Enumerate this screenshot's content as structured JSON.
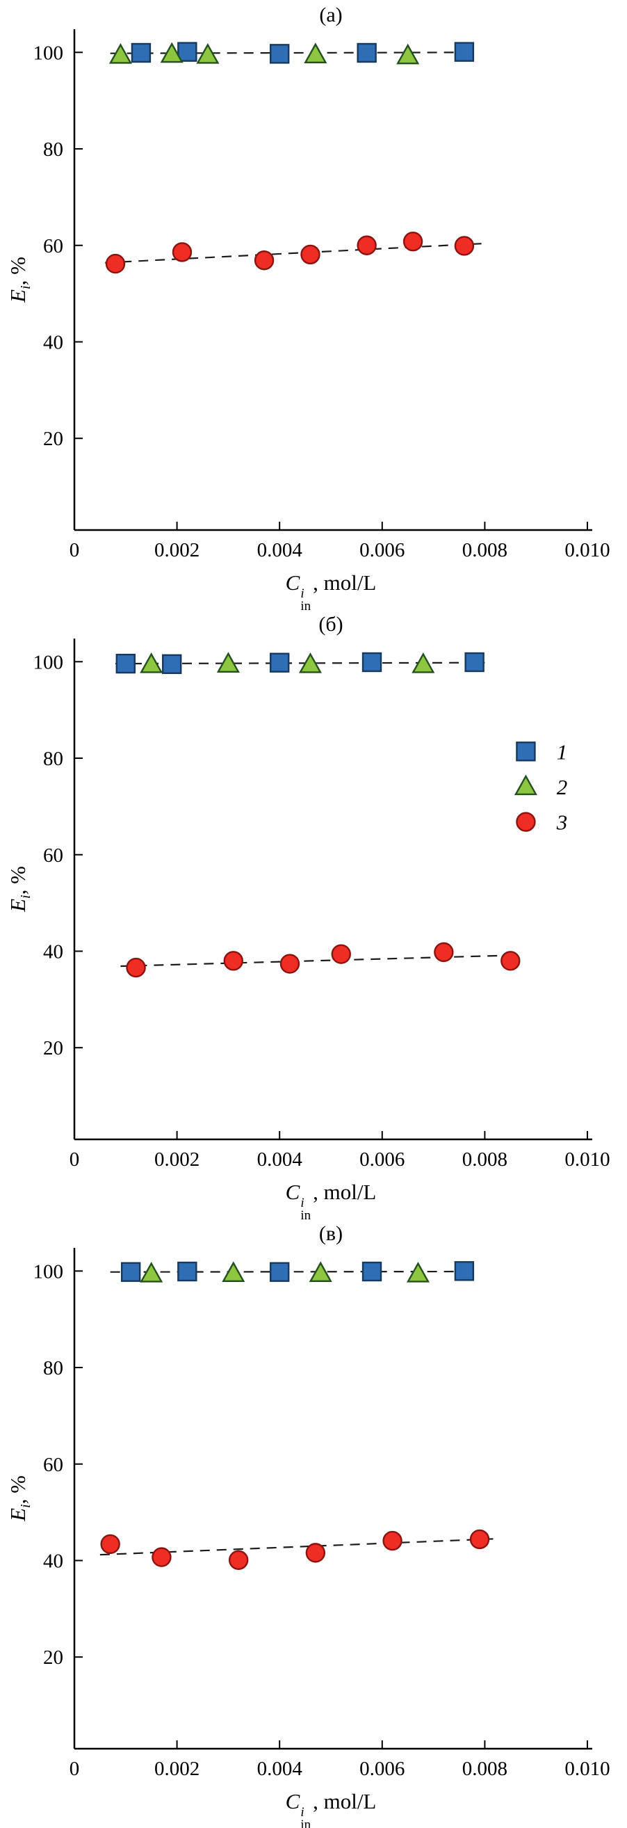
{
  "figure": {
    "background": "#ffffff"
  },
  "colors": {
    "axis": "#000000",
    "dash_line": "#1c1c1c",
    "square_fill": "#2f6eb5",
    "square_stroke": "#16395f",
    "triangle_fill": "#8dc63f",
    "triangle_stroke": "#25501f",
    "circle_fill": "#ee2e24",
    "circle_stroke": "#8c1410"
  },
  "labels": {
    "xlabel": {
      "var": "C",
      "sup": "i",
      "sub": "in",
      "rest": ", mol/L"
    },
    "ylabel": {
      "var": "E",
      "sub": "i",
      "rest": ", %"
    }
  },
  "legend": {
    "items": [
      {
        "label": "1",
        "marker": "square"
      },
      {
        "label": "2",
        "marker": "triangle"
      },
      {
        "label": "3",
        "marker": "circle"
      }
    ]
  },
  "chart_data": [
    {
      "type": "scatter",
      "title": "(а)",
      "xlabel": "C_in^i, mol/L",
      "ylabel": "E_i, %",
      "xlim": [
        0,
        0.01
      ],
      "ylim": [
        1,
        104.8
      ],
      "grid": false,
      "xticks": {
        "values": [
          0,
          0.002,
          0.004,
          0.006,
          0.008,
          0.01
        ],
        "labels": [
          "0",
          "0.002",
          "0.004",
          "0.006",
          "0.008",
          "0.010"
        ]
      },
      "yticks": {
        "values": [
          20,
          40,
          60,
          80,
          100
        ],
        "labels": [
          "20",
          "40",
          "60",
          "80",
          "100"
        ]
      },
      "series": [
        {
          "name": "1",
          "marker": "square",
          "points": [
            [
              0.0013,
              99.9
            ],
            [
              0.0022,
              100.1
            ],
            [
              0.004,
              99.7
            ],
            [
              0.0057,
              99.9
            ],
            [
              0.0076,
              100.1
            ]
          ]
        },
        {
          "name": "2",
          "marker": "triangle",
          "points": [
            [
              0.0009,
              99.4
            ],
            [
              0.0019,
              99.6
            ],
            [
              0.0026,
              99.4
            ],
            [
              0.0047,
              99.5
            ],
            [
              0.0065,
              99.3
            ]
          ]
        },
        {
          "name": "3",
          "marker": "circle",
          "points": [
            [
              0.0008,
              56.2
            ],
            [
              0.0021,
              58.6
            ],
            [
              0.0037,
              56.9
            ],
            [
              0.0046,
              58.1
            ],
            [
              0.0057,
              60.0
            ],
            [
              0.0066,
              60.8
            ],
            [
              0.0076,
              59.9
            ]
          ]
        }
      ],
      "trendlines": [
        {
          "x1": 0.0007,
          "y1": 99.8,
          "x2": 0.0078,
          "y2": 100.0
        },
        {
          "x1": 0.0006,
          "y1": 56.4,
          "x2": 0.008,
          "y2": 60.4
        }
      ],
      "legend": null
    },
    {
      "type": "scatter",
      "title": "(б)",
      "xlabel": "C_in^i, mol/L",
      "ylabel": "E_i, %",
      "xlim": [
        0,
        0.01
      ],
      "ylim": [
        1,
        104.8
      ],
      "grid": false,
      "xticks": {
        "values": [
          0,
          0.002,
          0.004,
          0.006,
          0.008,
          0.01
        ],
        "labels": [
          "0",
          "0.002",
          "0.004",
          "0.006",
          "0.008",
          "0.010"
        ]
      },
      "yticks": {
        "values": [
          20,
          40,
          60,
          80,
          100
        ],
        "labels": [
          "20",
          "40",
          "60",
          "80",
          "100"
        ]
      },
      "series": [
        {
          "name": "1",
          "marker": "square",
          "points": [
            [
              0.001,
              99.6
            ],
            [
              0.0019,
              99.5
            ],
            [
              0.004,
              99.8
            ],
            [
              0.0058,
              99.9
            ],
            [
              0.0078,
              99.9
            ]
          ]
        },
        {
          "name": "2",
          "marker": "triangle",
          "points": [
            [
              0.0015,
              99.4
            ],
            [
              0.003,
              99.5
            ],
            [
              0.0046,
              99.4
            ],
            [
              0.0068,
              99.4
            ]
          ]
        },
        {
          "name": "3",
          "marker": "circle",
          "points": [
            [
              0.0012,
              36.6
            ],
            [
              0.0031,
              38.0
            ],
            [
              0.0042,
              37.4
            ],
            [
              0.0052,
              39.4
            ],
            [
              0.0072,
              39.8
            ],
            [
              0.0085,
              38.0
            ]
          ]
        }
      ],
      "trendlines": [
        {
          "x1": 0.0008,
          "y1": 99.6,
          "x2": 0.008,
          "y2": 99.8
        },
        {
          "x1": 0.0009,
          "y1": 36.9,
          "x2": 0.0087,
          "y2": 39.2
        }
      ],
      "legend": {
        "marker_x": 0.0088,
        "label_x": 0.0094,
        "ys": [
          81.4,
          74.1,
          66.8
        ]
      }
    },
    {
      "type": "scatter",
      "title": "(в)",
      "xlabel": "C_in^i, mol/L",
      "ylabel": "E_i, %",
      "xlim": [
        0,
        0.01
      ],
      "ylim": [
        1,
        104.8
      ],
      "grid": false,
      "xticks": {
        "values": [
          0,
          0.002,
          0.004,
          0.006,
          0.008,
          0.01
        ],
        "labels": [
          "0",
          "0.002",
          "0.004",
          "0.006",
          "0.008",
          "0.010"
        ]
      },
      "yticks": {
        "values": [
          20,
          40,
          60,
          80,
          100
        ],
        "labels": [
          "20",
          "40",
          "60",
          "80",
          "100"
        ]
      },
      "series": [
        {
          "name": "1",
          "marker": "square",
          "points": [
            [
              0.0011,
              99.8
            ],
            [
              0.0022,
              99.9
            ],
            [
              0.004,
              99.8
            ],
            [
              0.0058,
              99.9
            ],
            [
              0.0076,
              100.0
            ]
          ]
        },
        {
          "name": "2",
          "marker": "triangle",
          "points": [
            [
              0.0015,
              99.4
            ],
            [
              0.0031,
              99.5
            ],
            [
              0.0048,
              99.5
            ],
            [
              0.0067,
              99.4
            ]
          ]
        },
        {
          "name": "3",
          "marker": "circle",
          "points": [
            [
              0.0007,
              43.4
            ],
            [
              0.0017,
              40.7
            ],
            [
              0.0032,
              40.1
            ],
            [
              0.0047,
              41.6
            ],
            [
              0.0062,
              44.1
            ],
            [
              0.0079,
              44.4
            ]
          ]
        }
      ],
      "trendlines": [
        {
          "x1": 0.0007,
          "y1": 99.8,
          "x2": 0.0078,
          "y2": 99.9
        },
        {
          "x1": 0.0005,
          "y1": 41.2,
          "x2": 0.0082,
          "y2": 44.5
        }
      ],
      "legend": null
    }
  ]
}
